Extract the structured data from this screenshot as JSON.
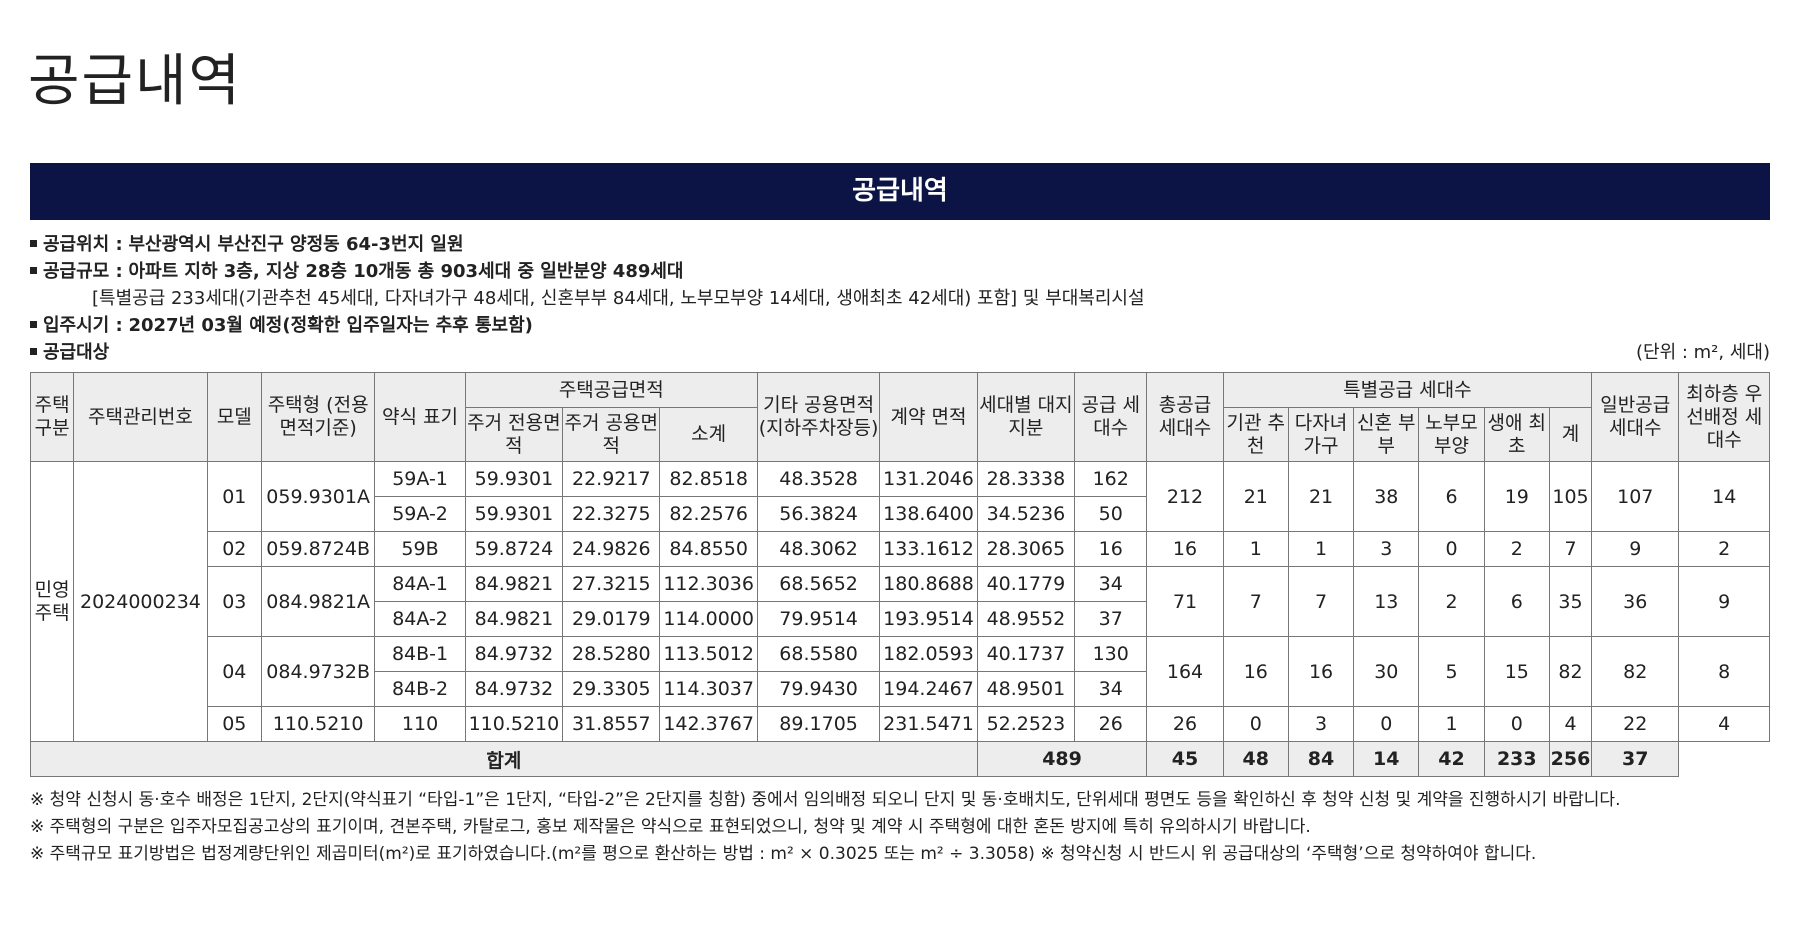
{
  "page_title": "공급내역",
  "banner_title": "공급내역",
  "info": {
    "location": {
      "label": "공급위치 :",
      "value": "부산광역시 부산진구 양정동 64-3번지 일원"
    },
    "scale": {
      "label": "공급규모 :",
      "value": "아파트 지하 3층, 지상 28층 10개동 총 903세대 중 일반분양 489세대",
      "detail": "[특별공급 233세대(기관추천 45세대, 다자녀가구 48세대, 신혼부부 84세대, 노부모부양 14세대, 생애최초 42세대) 포함] 및 부대복리시설"
    },
    "move_in": {
      "label": "입주시기 :",
      "value": "2027년 03월 예정(정확한 입주일자는 추후 통보함)"
    },
    "target": {
      "label": "공급대상"
    },
    "unit": "(단위 : m², 세대)"
  },
  "table": {
    "headers": {
      "housing_type": "주택 구분",
      "mgmt_no": "주택관리번호",
      "model": "모델",
      "house_type": "주택형 (전용면적기준)",
      "abbr": "약식 표기",
      "supply_area": "주택공급면적",
      "exclusive": "주거 전용면적",
      "common": "주거 공용면적",
      "subtotal": "소계",
      "other_common": "기타 공용면적 (지하주차장등)",
      "contract_area": "계약 면적",
      "land_share": "세대별 대지지분",
      "supply_units": "공급 세대수",
      "total_supply": "총공급 세대수",
      "special": "특별공급 세대수",
      "inst": "기관 추천",
      "multi": "다자녀 가구",
      "newly": "신혼 부부",
      "elderly": "노부모 부양",
      "first": "생애 최초",
      "special_sum": "계",
      "general": "일반공급 세대수",
      "lowest_floor": "최하층 우선배정 세대수"
    },
    "category": "민영 주택",
    "mgmt_no": "2024000234",
    "groups": [
      {
        "model": "01",
        "type": "059.9301A",
        "total": "212",
        "inst": "21",
        "multi": "21",
        "newly": "38",
        "elderly": "6",
        "first": "19",
        "sum": "105",
        "general": "107",
        "lowest": "14",
        "rows": [
          {
            "abbr": "59A-1",
            "excl": "59.9301",
            "common": "22.9217",
            "sub": "82.8518",
            "other": "48.3528",
            "contract": "131.2046",
            "land": "28.3338",
            "units": "162"
          },
          {
            "abbr": "59A-2",
            "excl": "59.9301",
            "common": "22.3275",
            "sub": "82.2576",
            "other": "56.3824",
            "contract": "138.6400",
            "land": "34.5236",
            "units": "50"
          }
        ]
      },
      {
        "model": "02",
        "type": "059.8724B",
        "total": "16",
        "inst": "1",
        "multi": "1",
        "newly": "3",
        "elderly": "0",
        "first": "2",
        "sum": "7",
        "general": "9",
        "lowest": "2",
        "rows": [
          {
            "abbr": "59B",
            "excl": "59.8724",
            "common": "24.9826",
            "sub": "84.8550",
            "other": "48.3062",
            "contract": "133.1612",
            "land": "28.3065",
            "units": "16"
          }
        ]
      },
      {
        "model": "03",
        "type": "084.9821A",
        "total": "71",
        "inst": "7",
        "multi": "7",
        "newly": "13",
        "elderly": "2",
        "first": "6",
        "sum": "35",
        "general": "36",
        "lowest": "9",
        "rows": [
          {
            "abbr": "84A-1",
            "excl": "84.9821",
            "common": "27.3215",
            "sub": "112.3036",
            "other": "68.5652",
            "contract": "180.8688",
            "land": "40.1779",
            "units": "34"
          },
          {
            "abbr": "84A-2",
            "excl": "84.9821",
            "common": "29.0179",
            "sub": "114.0000",
            "other": "79.9514",
            "contract": "193.9514",
            "land": "48.9552",
            "units": "37"
          }
        ]
      },
      {
        "model": "04",
        "type": "084.9732B",
        "total": "164",
        "inst": "16",
        "multi": "16",
        "newly": "30",
        "elderly": "5",
        "first": "15",
        "sum": "82",
        "general": "82",
        "lowest": "8",
        "rows": [
          {
            "abbr": "84B-1",
            "excl": "84.9732",
            "common": "28.5280",
            "sub": "113.5012",
            "other": "68.5580",
            "contract": "182.0593",
            "land": "40.1737",
            "units": "130"
          },
          {
            "abbr": "84B-2",
            "excl": "84.9732",
            "common": "29.3305",
            "sub": "114.3037",
            "other": "79.9430",
            "contract": "194.2467",
            "land": "48.9501",
            "units": "34"
          }
        ]
      },
      {
        "model": "05",
        "type": "110.5210",
        "total": "26",
        "inst": "0",
        "multi": "3",
        "newly": "0",
        "elderly": "1",
        "first": "0",
        "sum": "4",
        "general": "22",
        "lowest": "4",
        "rows": [
          {
            "abbr": "110",
            "excl": "110.5210",
            "common": "31.8557",
            "sub": "142.3767",
            "other": "89.1705",
            "contract": "231.5471",
            "land": "52.2523",
            "units": "26"
          }
        ]
      }
    ],
    "totals": {
      "label": "합계",
      "supply": "489",
      "inst": "45",
      "multi": "48",
      "newly": "84",
      "elderly": "14",
      "first": "42",
      "sum": "233",
      "general": "256",
      "lowest": "37"
    }
  },
  "notes": [
    "※ 청약 신청시 동·호수 배정은 1단지, 2단지(약식표기 “타입-1”은 1단지, “타입-2”은 2단지를 칭함) 중에서 임의배정 되오니 단지 및 동·호배치도, 단위세대 평면도 등을 확인하신 후 청약 신청 및 계약을 진행하시기 바랍니다.",
    "※ 주택형의 구분은 입주자모집공고상의 표기이며, 견본주택, 카탈로그, 홍보 제작물은 약식으로 표현되었으니, 청약 및 계약 시 주택형에 대한 혼돈 방지에 특히 유의하시기 바랍니다.",
    "※ 주택규모 표기방법은 법정계량단위인 제곱미터(m²)로 표기하였습니다.(m²를 평으로 환산하는 방법 : m² × 0.3025 또는 m² ÷ 3.3058)  ※ 청약신청 시 반드시 위 공급대상의 ‘주택형’으로 청약하여야 합니다."
  ]
}
